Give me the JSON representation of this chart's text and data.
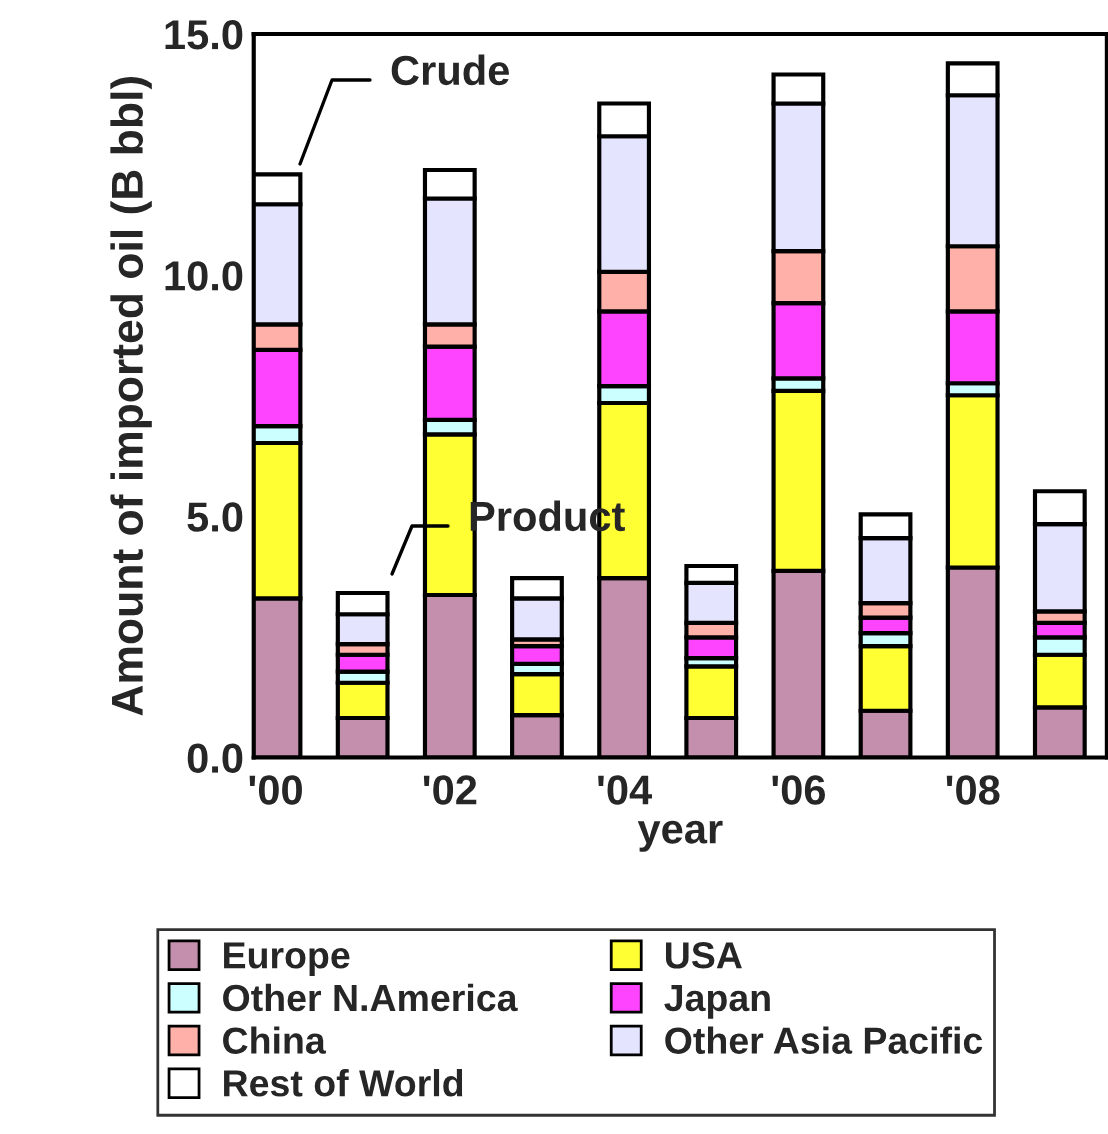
{
  "chart_data": {
    "type": "bar",
    "stacked": true,
    "categories": [
      "'00",
      null,
      "'02",
      null,
      "'04",
      null,
      "'06",
      null,
      "'08",
      null
    ],
    "xlabel": "year",
    "ylabel": "Amount of imported oil (B bbl)",
    "ylim": [
      0,
      15
    ],
    "yticks": [
      {
        "value": 0,
        "label": "0.0"
      },
      {
        "value": 5,
        "label": "5.0"
      },
      {
        "value": 10,
        "label": "10.0"
      },
      {
        "value": 15,
        "label": "15.0"
      }
    ],
    "legend": "bottom",
    "grid": false,
    "annotations": [
      "Crude",
      "Product"
    ],
    "series": [
      {
        "name": "Europe",
        "color": "#c48fac",
        "values": [
          3.3,
          0.82,
          3.37,
          0.88,
          3.72,
          0.82,
          3.87,
          0.97,
          3.94,
          1.04
        ]
      },
      {
        "name": "USA",
        "color": "#ffff33",
        "values": [
          3.22,
          0.73,
          3.33,
          0.85,
          3.63,
          1.07,
          3.73,
          1.34,
          3.57,
          1.09
        ]
      },
      {
        "name": "Other N.America",
        "color": "#ccffff",
        "values": [
          0.35,
          0.23,
          0.3,
          0.21,
          0.35,
          0.17,
          0.26,
          0.27,
          0.25,
          0.36
        ]
      },
      {
        "name": "Japan",
        "color": "#ff44ff",
        "values": [
          1.58,
          0.35,
          1.52,
          0.37,
          1.55,
          0.43,
          1.56,
          0.32,
          1.49,
          0.3
        ]
      },
      {
        "name": "China",
        "color": "#ffb0a8",
        "values": [
          0.53,
          0.22,
          0.46,
          0.14,
          0.82,
          0.3,
          1.08,
          0.3,
          1.35,
          0.24
        ]
      },
      {
        "name": "Other Asia Pacific",
        "color": "#e4e4ff",
        "values": [
          2.49,
          0.62,
          2.61,
          0.85,
          2.81,
          0.83,
          3.06,
          1.35,
          3.13,
          1.81
        ]
      },
      {
        "name": "Rest of World",
        "color": "#ffffff",
        "values": [
          0.62,
          0.44,
          0.59,
          0.42,
          0.68,
          0.35,
          0.6,
          0.49,
          0.66,
          0.68
        ]
      }
    ]
  }
}
